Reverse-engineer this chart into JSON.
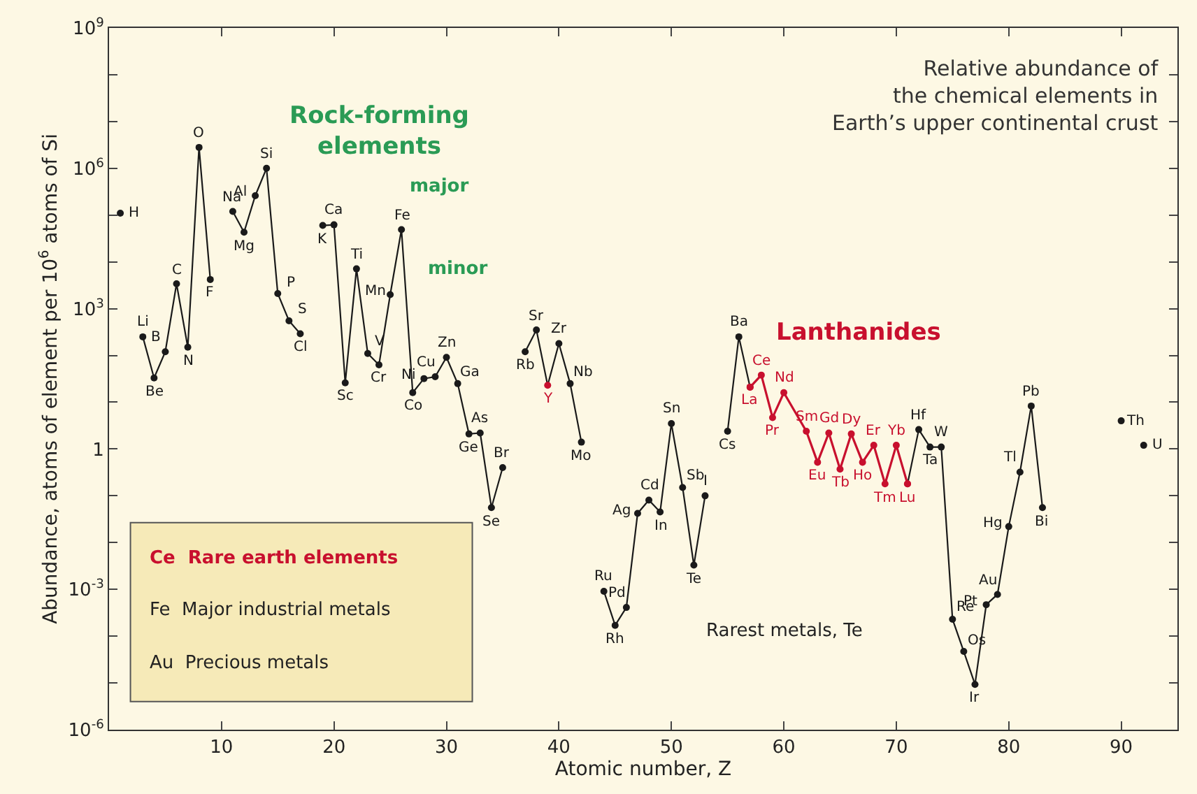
{
  "chart_data": {
    "type": "line",
    "title": "Relative abundance of\nthe chemical elements in\nEarth’s upper continental crust",
    "xlabel": "Atomic number, Z",
    "ylabel": "Abundance, atoms of element per 10$^{6}$ atoms of Si",
    "log": "y",
    "marker": "circle",
    "line_style": "solid",
    "grid": false,
    "xlim": [
      0,
      95
    ],
    "xticks": [
      10,
      20,
      30,
      40,
      50,
      60,
      70,
      80,
      90
    ],
    "ylim": [
      1e-06,
      1000000000.0
    ],
    "yticks": [
      {
        "value": 1e-06,
        "label": "10$^{-6}$"
      },
      {
        "value": 1e-05,
        "label": null
      },
      {
        "value": 0.0001,
        "label": null
      },
      {
        "value": 0.001,
        "label": "10$^{-3}$"
      },
      {
        "value": 0.01,
        "label": null
      },
      {
        "value": 0.1,
        "label": null
      },
      {
        "value": 1,
        "label": "1"
      },
      {
        "value": 10,
        "label": null
      },
      {
        "value": 100,
        "label": null
      },
      {
        "value": 1000,
        "label": "10$^{3}$"
      },
      {
        "value": 10000.0,
        "label": null
      },
      {
        "value": 100000.0,
        "label": null
      },
      {
        "value": 1000000.0,
        "label": "10$^{6}$"
      },
      {
        "value": 10000000.0,
        "label": null
      },
      {
        "value": 100000000.0,
        "label": null
      },
      {
        "value": 1000000000.0,
        "label": "10$^{9}$"
      }
    ],
    "series": [
      {
        "color": "#1a1a1a",
        "x": [
          1,
          2,
          3,
          4,
          5,
          6,
          7,
          8,
          9,
          10,
          11,
          12,
          13,
          14,
          15,
          16,
          17,
          18,
          19,
          20,
          21,
          22,
          23,
          24,
          25,
          26,
          27,
          28,
          29,
          30,
          31,
          32,
          33,
          34,
          35,
          36,
          37,
          38,
          39,
          40,
          41,
          42,
          43,
          44,
          45,
          46,
          47,
          48,
          49,
          50,
          51,
          52,
          53,
          54,
          55,
          56,
          57,
          58,
          71,
          72,
          73,
          74,
          75,
          76,
          77,
          78,
          79,
          80,
          81,
          82,
          83,
          84,
          90,
          91,
          92
        ],
        "values": [
          110000,
          null,
          250,
          33,
          120,
          3400,
          150,
          2800000,
          4200,
          null,
          120000,
          43000,
          260000,
          1000000,
          2100,
          550,
          290,
          null,
          60000,
          62000,
          26,
          7100,
          110,
          63,
          2000,
          49000,
          16,
          32,
          35,
          91,
          25,
          2.1,
          2.2,
          0.056,
          0.4,
          null,
          120,
          350,
          23,
          180,
          25,
          1.4,
          null,
          0.00091,
          0.00017,
          0.00041,
          0.042,
          0.081,
          0.045,
          3.5,
          0.15,
          0.0033,
          0.1,
          null,
          2.4,
          250,
          21,
          null,
          0.18,
          2.6,
          1.1,
          1.1,
          0.00023,
          4.7e-05,
          9.3e-06,
          0.00047,
          0.00078,
          0.022,
          0.32,
          8.3,
          0.056,
          null,
          4.0,
          null,
          1.2
        ],
        "colors": [
          "#1a1a1a",
          "#1a1a1a",
          "#1a1a1a",
          "#1a1a1a",
          "#1a1a1a",
          "#1a1a1a",
          "#1a1a1a",
          "#1a1a1a",
          "#1a1a1a",
          "#1a1a1a",
          "#1a1a1a",
          "#1a1a1a",
          "#1a1a1a",
          "#1a1a1a",
          "#1a1a1a",
          "#1a1a1a",
          "#1a1a1a",
          "#1a1a1a",
          "#1a1a1a",
          "#1a1a1a",
          "#1a1a1a",
          "#1a1a1a",
          "#1a1a1a",
          "#1a1a1a",
          "#1a1a1a",
          "#1a1a1a",
          "#1a1a1a",
          "#1a1a1a",
          "#1a1a1a",
          "#1a1a1a",
          "#1a1a1a",
          "#1a1a1a",
          "#1a1a1a",
          "#1a1a1a",
          "#1a1a1a",
          "#1a1a1a",
          "#1a1a1a",
          "#1a1a1a",
          "#c8102e",
          "#1a1a1a",
          "#1a1a1a",
          "#1a1a1a",
          "#1a1a1a",
          "#1a1a1a",
          "#1a1a1a",
          "#1a1a1a",
          "#1a1a1a",
          "#1a1a1a",
          "#1a1a1a",
          "#1a1a1a",
          "#1a1a1a",
          "#1a1a1a",
          "#1a1a1a",
          "#1a1a1a",
          "#1a1a1a",
          "#1a1a1a",
          "#c8102e",
          "#1a1a1a",
          "#c8102e",
          "#1a1a1a",
          "#1a1a1a",
          "#1a1a1a",
          "#1a1a1a",
          "#1a1a1a",
          "#1a1a1a",
          "#1a1a1a",
          "#1a1a1a",
          "#1a1a1a",
          "#1a1a1a",
          "#1a1a1a",
          "#1a1a1a",
          "#1a1a1a",
          "#1a1a1a",
          "#1a1a1a",
          "#1a1a1a"
        ]
      },
      {
        "color": "#c8102e",
        "x": [
          57,
          58,
          59,
          60,
          62,
          63,
          64,
          65,
          66,
          67,
          68,
          69,
          70,
          71
        ],
        "values": [
          21,
          38,
          4.7,
          16,
          2.4,
          0.52,
          2.2,
          0.37,
          2.1,
          0.52,
          1.2,
          0.18,
          1.2,
          0.18
        ]
      }
    ],
    "annotations": [
      {
        "text": "H",
        "x": 1,
        "y": 110000
      },
      {
        "text": "Li",
        "x": 3,
        "y": 250
      },
      {
        "text": "Be",
        "x": 4,
        "y": 33
      },
      {
        "text": "B",
        "x": 5,
        "y": 120
      },
      {
        "text": "C",
        "x": 6,
        "y": 3400
      },
      {
        "text": "N",
        "x": 7,
        "y": 150
      },
      {
        "text": "O",
        "x": 8,
        "y": 2800000
      },
      {
        "text": "F",
        "x": 9,
        "y": 4200
      },
      {
        "text": "Na",
        "x": 11,
        "y": 120000
      },
      {
        "text": "Mg",
        "x": 12,
        "y": 43000
      },
      {
        "text": "Al",
        "x": 13,
        "y": 260000
      },
      {
        "text": "Si",
        "x": 14,
        "y": 1000000
      },
      {
        "text": "P",
        "x": 15,
        "y": 2100
      },
      {
        "text": "S",
        "x": 16,
        "y": 550
      },
      {
        "text": "Cl",
        "x": 17,
        "y": 290
      },
      {
        "text": "K",
        "x": 19,
        "y": 60000
      },
      {
        "text": "Ca",
        "x": 20,
        "y": 62000
      },
      {
        "text": "Sc",
        "x": 21,
        "y": 26
      },
      {
        "text": "Ti",
        "x": 22,
        "y": 7100
      },
      {
        "text": "V",
        "x": 23,
        "y": 110
      },
      {
        "text": "Cr",
        "x": 24,
        "y": 63
      },
      {
        "text": "Mn",
        "x": 25,
        "y": 2000
      },
      {
        "text": "Fe",
        "x": 26,
        "y": 49000
      },
      {
        "text": "Co",
        "x": 27,
        "y": 16
      },
      {
        "text": "Ni",
        "x": 28,
        "y": 32
      },
      {
        "text": "Cu",
        "x": 29,
        "y": 35
      },
      {
        "text": "Zn",
        "x": 30,
        "y": 91
      },
      {
        "text": "Ga",
        "x": 31,
        "y": 25
      },
      {
        "text": "Ge",
        "x": 32,
        "y": 2.1
      },
      {
        "text": "As",
        "x": 33,
        "y": 2.2
      },
      {
        "text": "Se",
        "x": 34,
        "y": 0.056
      },
      {
        "text": "Br",
        "x": 35,
        "y": 0.4
      },
      {
        "text": "Rb",
        "x": 37,
        "y": 120
      },
      {
        "text": "Sr",
        "x": 38,
        "y": 350
      },
      {
        "text": "Y",
        "x": 39,
        "y": 23
      },
      {
        "text": "Zr",
        "x": 40,
        "y": 180
      },
      {
        "text": "Nb",
        "x": 41,
        "y": 25
      },
      {
        "text": "Mo",
        "x": 42,
        "y": 1.4
      },
      {
        "text": "Ru",
        "x": 44,
        "y": 0.00091
      },
      {
        "text": "Rh",
        "x": 45,
        "y": 0.00017
      },
      {
        "text": "Pd",
        "x": 46,
        "y": 0.00041
      },
      {
        "text": "Ag",
        "x": 47,
        "y": 0.042
      },
      {
        "text": "Cd",
        "x": 48,
        "y": 0.081
      },
      {
        "text": "In",
        "x": 49,
        "y": 0.045
      },
      {
        "text": "Sn",
        "x": 50,
        "y": 3.5
      },
      {
        "text": "Sb",
        "x": 51,
        "y": 0.15
      },
      {
        "text": "Te",
        "x": 52,
        "y": 0.0033
      },
      {
        "text": "I",
        "x": 53,
        "y": 0.1
      },
      {
        "text": "Cs",
        "x": 55,
        "y": 2.4
      },
      {
        "text": "Ba",
        "x": 56,
        "y": 250
      },
      {
        "text": "La",
        "x": 57,
        "y": 21
      },
      {
        "text": "Ce",
        "x": 58,
        "y": 38
      },
      {
        "text": "Pr",
        "x": 59,
        "y": 4.7
      },
      {
        "text": "Nd",
        "x": 60,
        "y": 16
      },
      {
        "text": "Sm",
        "x": 62,
        "y": 2.4
      },
      {
        "text": "Eu",
        "x": 63,
        "y": 0.52
      },
      {
        "text": "Gd",
        "x": 64,
        "y": 2.2
      },
      {
        "text": "Tb",
        "x": 65,
        "y": 0.37
      },
      {
        "text": "Dy",
        "x": 66,
        "y": 2.1
      },
      {
        "text": "Ho",
        "x": 67,
        "y": 0.52
      },
      {
        "text": "Er",
        "x": 68,
        "y": 1.2
      },
      {
        "text": "Tm",
        "x": 69,
        "y": 0.18
      },
      {
        "text": "Yb",
        "x": 70,
        "y": 1.2
      },
      {
        "text": "Lu",
        "x": 71,
        "y": 0.18
      },
      {
        "text": "Hf",
        "x": 72,
        "y": 2.6
      },
      {
        "text": "Ta",
        "x": 73,
        "y": 1.1
      },
      {
        "text": "W",
        "x": 74,
        "y": 1.1
      },
      {
        "text": "Re",
        "x": 75,
        "y": 0.00023
      },
      {
        "text": "Os",
        "x": 76,
        "y": 4.7e-05
      },
      {
        "text": "Ir",
        "x": 77,
        "y": 9.3e-06
      },
      {
        "text": "Pt",
        "x": 78,
        "y": 0.00047
      },
      {
        "text": "Au",
        "x": 79,
        "y": 0.00078
      },
      {
        "text": "Hg",
        "x": 80,
        "y": 0.022
      },
      {
        "text": "Tl",
        "x": 81,
        "y": 0.32
      },
      {
        "text": "Pb",
        "x": 82,
        "y": 8.3
      },
      {
        "text": "Bi",
        "x": 83,
        "y": 0.056
      },
      {
        "text": "Th",
        "x": 90,
        "y": 4.0
      },
      {
        "text": "U",
        "x": 92,
        "y": 1.2
      },
      "Rock-forming\nelements",
      "major",
      "minor",
      "Lanthanides",
      "Rarest metals, Te",
      "Ce  Rare earth elements",
      "Fe  Major industrial metals",
      "Au  Precious metals"
    ]
  }
}
